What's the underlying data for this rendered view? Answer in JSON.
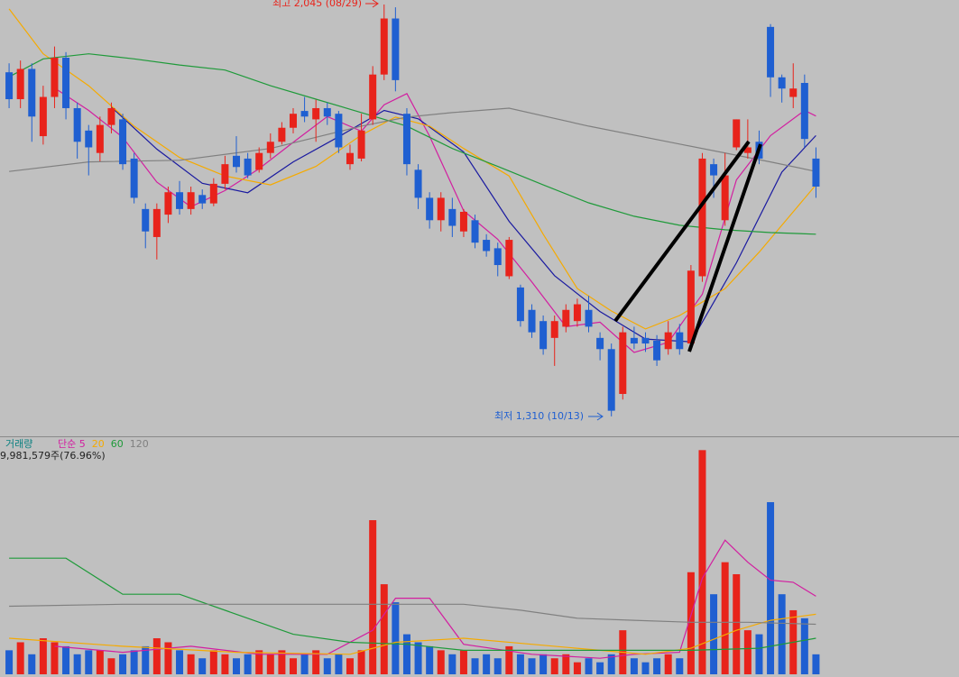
{
  "chart_data": [
    {
      "type": "candlestick",
      "annotations": {
        "high": "최고 2,045 (08/29)",
        "low": "최저 1,310 (10/13)"
      },
      "xlim": [
        -0.8,
        71.6
      ],
      "ylim": [
        1276,
        2053
      ],
      "up_color": "#e8231b",
      "down_color": "#1f5fd1",
      "candles": {
        "open": [
          1924,
          1876,
          1930,
          1810,
          1880,
          1950,
          1860,
          1820,
          1780,
          1830,
          1840,
          1770,
          1680,
          1630,
          1670,
          1710,
          1680,
          1705,
          1690,
          1725,
          1775,
          1770,
          1750,
          1780,
          1800,
          1825,
          1855,
          1840,
          1860,
          1850,
          1760,
          1770,
          1840,
          1920,
          2020,
          1850,
          1750,
          1700,
          1660,
          1680,
          1640,
          1660,
          1625,
          1610,
          1560,
          1540,
          1500,
          1480,
          1450,
          1470,
          1480,
          1500,
          1450,
          1430,
          1350,
          1450,
          1450,
          1445,
          1430,
          1460,
          1440,
          1560,
          1760,
          1660,
          1790,
          1780,
          1800,
          2005,
          1915,
          1880,
          1905,
          1770
        ],
        "high": [
          1940,
          1945,
          1940,
          1900,
          1970,
          1960,
          1870,
          1830,
          1845,
          1870,
          1850,
          1780,
          1690,
          1690,
          1720,
          1730,
          1720,
          1715,
          1735,
          1775,
          1810,
          1780,
          1790,
          1815,
          1835,
          1860,
          1880,
          1875,
          1870,
          1855,
          1795,
          1850,
          1935,
          2045,
          2040,
          1860,
          1760,
          1710,
          1710,
          1700,
          1680,
          1670,
          1635,
          1620,
          1630,
          1545,
          1510,
          1490,
          1490,
          1510,
          1520,
          1525,
          1460,
          1440,
          1470,
          1470,
          1460,
          1455,
          1480,
          1475,
          1580,
          1780,
          1770,
          1780,
          1840,
          1840,
          1820,
          2010,
          1920,
          1940,
          1920,
          1790
        ],
        "low": [
          1860,
          1860,
          1800,
          1795,
          1860,
          1840,
          1770,
          1740,
          1765,
          1815,
          1750,
          1690,
          1610,
          1590,
          1655,
          1670,
          1670,
          1680,
          1685,
          1715,
          1745,
          1735,
          1745,
          1770,
          1795,
          1815,
          1835,
          1800,
          1830,
          1780,
          1750,
          1765,
          1830,
          1910,
          1890,
          1740,
          1680,
          1645,
          1640,
          1630,
          1630,
          1610,
          1595,
          1560,
          1555,
          1470,
          1450,
          1420,
          1400,
          1460,
          1470,
          1460,
          1410,
          1310,
          1340,
          1430,
          1425,
          1400,
          1420,
          1420,
          1430,
          1550,
          1700,
          1650,
          1785,
          1770,
          1760,
          1880,
          1870,
          1860,
          1790,
          1700
        ],
        "close": [
          1876,
          1930,
          1845,
          1880,
          1950,
          1860,
          1800,
          1790,
          1830,
          1860,
          1760,
          1700,
          1640,
          1680,
          1710,
          1680,
          1710,
          1690,
          1725,
          1760,
          1755,
          1740,
          1780,
          1800,
          1825,
          1850,
          1845,
          1860,
          1845,
          1790,
          1780,
          1820,
          1920,
          2020,
          1910,
          1760,
          1700,
          1660,
          1700,
          1650,
          1675,
          1620,
          1605,
          1580,
          1625,
          1480,
          1460,
          1430,
          1480,
          1500,
          1510,
          1470,
          1430,
          1320,
          1460,
          1440,
          1440,
          1410,
          1460,
          1430,
          1570,
          1770,
          1740,
          1740,
          1840,
          1790,
          1770,
          1915,
          1895,
          1895,
          1805,
          1720
        ]
      },
      "series": [
        {
          "color": "#d21ea0",
          "x": [
            4,
            7,
            10,
            13,
            16,
            19,
            22,
            25,
            28,
            31,
            33,
            35,
            37,
            40,
            43,
            46,
            49,
            52,
            55,
            58,
            61,
            64,
            67,
            70,
            71
          ],
          "values": [
            1896,
            1856,
            1808,
            1728,
            1684,
            1713,
            1752,
            1799,
            1845,
            1819,
            1866,
            1886,
            1810,
            1677,
            1626,
            1550,
            1470,
            1478,
            1424,
            1442,
            1528,
            1732,
            1811,
            1856,
            1846
          ]
        },
        {
          "color": "#1a1aa0",
          "x": [
            9,
            13,
            17,
            21,
            25,
            29,
            33,
            36,
            40,
            44,
            48,
            52,
            56,
            60,
            64,
            68,
            71
          ],
          "values": [
            1862,
            1787,
            1726,
            1709,
            1764,
            1809,
            1856,
            1841,
            1782,
            1658,
            1561,
            1497,
            1448,
            1443,
            1584,
            1746,
            1811
          ]
        },
        {
          "color": "#f5aa00",
          "x": [
            0,
            3,
            7,
            11,
            15,
            19,
            23,
            27,
            31,
            34,
            37,
            40,
            44,
            47,
            50,
            53,
            56,
            59,
            63,
            66,
            69,
            71
          ],
          "values": [
            2037,
            1957,
            1900,
            1828,
            1772,
            1739,
            1723,
            1756,
            1812,
            1844,
            1828,
            1788,
            1739,
            1635,
            1538,
            1498,
            1466,
            1490,
            1538,
            1603,
            1675,
            1723
          ]
        },
        {
          "color": "#1f9a3a",
          "x": [
            0,
            3,
            7,
            11,
            15,
            19,
            23,
            27,
            31,
            35,
            39,
            43,
            47,
            51,
            55,
            59,
            63,
            67,
            71
          ],
          "values": [
            1916,
            1948,
            1957,
            1948,
            1937,
            1928,
            1900,
            1876,
            1852,
            1828,
            1788,
            1756,
            1723,
            1691,
            1667,
            1651,
            1643,
            1638,
            1635
          ]
        },
        {
          "color": "#808080",
          "x": [
            0,
            7,
            15,
            23,
            31,
            35,
            39,
            44,
            51,
            59,
            67,
            71
          ],
          "values": [
            1747,
            1764,
            1767,
            1788,
            1828,
            1844,
            1852,
            1860,
            1828,
            1796,
            1764,
            1747
          ]
        }
      ]
    },
    {
      "type": "volume",
      "legend_label": "거래량",
      "info": "9,981,579주(76.96%)",
      "xlim": [
        -0.8,
        71.6
      ],
      "ylim": [
        0,
        118
      ],
      "values": [
        12,
        16,
        10,
        18,
        16,
        14,
        10,
        12,
        12,
        8,
        10,
        12,
        14,
        18,
        16,
        12,
        10,
        8,
        12,
        10,
        8,
        10,
        12,
        10,
        12,
        8,
        10,
        12,
        8,
        10,
        8,
        12,
        77,
        45,
        36,
        20,
        16,
        14,
        12,
        10,
        12,
        8,
        10,
        8,
        14,
        10,
        8,
        10,
        8,
        10,
        6,
        8,
        6,
        10,
        22,
        8,
        6,
        8,
        10,
        8,
        51,
        112,
        40,
        56,
        50,
        22,
        20,
        86,
        40,
        32,
        28,
        9.98
      ],
      "series": [
        {
          "name": "단순 5",
          "color": "#d21ea0",
          "x": [
            4,
            10,
            16,
            22,
            28,
            32,
            34,
            37,
            40,
            46,
            52,
            55,
            59,
            61,
            63,
            65,
            67,
            69,
            71
          ],
          "values": [
            14,
            11,
            14,
            10,
            10,
            22,
            38,
            38,
            15,
            10,
            8,
            10,
            11,
            48,
            67,
            56,
            47,
            46,
            39
          ]
        },
        {
          "name": "20",
          "color": "#f5aa00",
          "x": [
            0,
            10,
            20,
            30,
            34,
            40,
            46,
            52,
            56,
            60,
            64,
            67,
            71
          ],
          "values": [
            18,
            14,
            11,
            10,
            16,
            18,
            15,
            12,
            10,
            13,
            22,
            27,
            30
          ]
        },
        {
          "name": "60",
          "color": "#1f9a3a",
          "x": [
            0,
            5,
            10,
            15,
            20,
            25,
            30,
            35,
            40,
            50,
            60,
            66,
            71
          ],
          "values": [
            58,
            58,
            40,
            40,
            30,
            20,
            16,
            15,
            12,
            12,
            12,
            13,
            18
          ]
        },
        {
          "name": "120",
          "color": "#808080",
          "x": [
            0,
            10,
            20,
            30,
            40,
            45,
            50,
            55,
            60,
            65,
            71
          ],
          "values": [
            34,
            35,
            35,
            35,
            35,
            32,
            28,
            27,
            26,
            26,
            25
          ]
        }
      ]
    }
  ]
}
